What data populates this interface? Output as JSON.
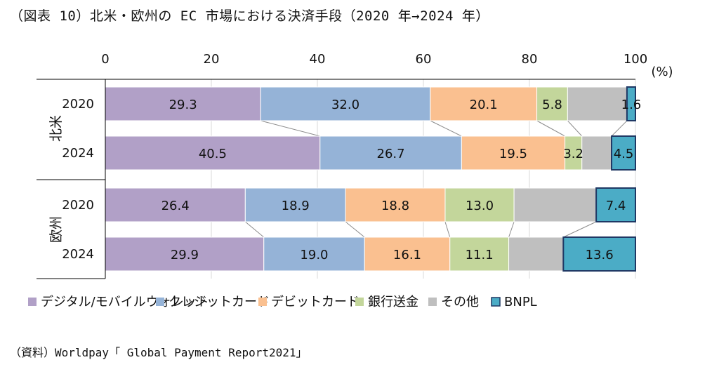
{
  "title": "（図表 10）北米・欧州の EC 市場における決済手段（2020 年→2024 年）",
  "source": "（資料）Worldpay「 Global Payment Report2021」",
  "chart_data": {
    "type": "bar",
    "orientation": "horizontal",
    "stacked": true,
    "xlim": [
      0,
      100
    ],
    "xticks": [
      0,
      20,
      40,
      60,
      80,
      100
    ],
    "unit": "(%)",
    "groups": [
      {
        "name": "北米",
        "years": [
          "2020",
          "2024"
        ]
      },
      {
        "name": "欧州",
        "years": [
          "2020",
          "2024"
        ]
      }
    ],
    "series": [
      {
        "name": "デジタル/モバイルウォレット",
        "color": "#b1a0c7",
        "values": [
          29.3,
          40.5,
          26.4,
          29.9
        ]
      },
      {
        "name": "クレジットカード",
        "color": "#95b3d7",
        "values": [
          32.0,
          26.7,
          18.9,
          19.0
        ]
      },
      {
        "name": "デビットカード",
        "color": "#fac090",
        "values": [
          20.1,
          19.5,
          18.8,
          16.1
        ]
      },
      {
        "name": "銀行送金",
        "color": "#c3d69b",
        "values": [
          5.8,
          3.2,
          13.0,
          11.1
        ]
      },
      {
        "name": "その他",
        "color": "#bfbfbf",
        "values": [
          11.2,
          5.6,
          15.5,
          10.3
        ]
      },
      {
        "name": "BNPL",
        "color": "#4bacc6",
        "values": [
          1.6,
          4.5,
          7.4,
          13.6
        ]
      }
    ],
    "value_labels_hidden_for": [
      "その他"
    ]
  }
}
